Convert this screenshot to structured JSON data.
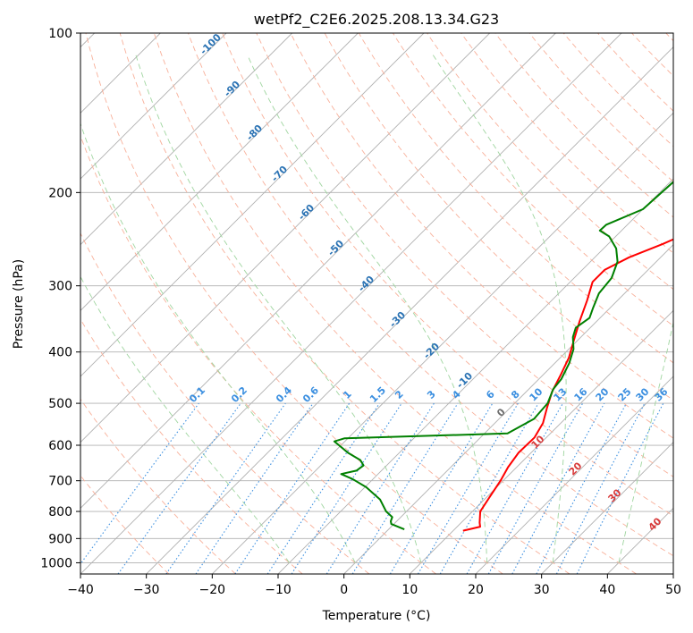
{
  "chart_data": {
    "type": "line",
    "subtype": "skew-T log-P",
    "title": "wetPf2_C2E6.2025.208.13.34.G23",
    "xlabel": "Temperature (°C)",
    "ylabel": "Pressure (hPa)",
    "xlim": [
      -40,
      50
    ],
    "ylim": [
      1050,
      100
    ],
    "y_scale": "log",
    "grid": true,
    "x_ticks": [
      "−40",
      "−30",
      "−20",
      "−10",
      "0",
      "10",
      "20",
      "30",
      "40",
      "50"
    ],
    "y_ticks": [
      "100",
      "200",
      "300",
      "400",
      "500",
      "600",
      "700",
      "800",
      "900",
      "1000"
    ],
    "series": [
      {
        "role": "temperature",
        "color": "#ff0000",
        "points": [
          [
            870,
            11.5
          ],
          [
            855,
            13.5
          ],
          [
            840,
            12.8
          ],
          [
            800,
            11.2
          ],
          [
            750,
            10.4
          ],
          [
            700,
            9.6
          ],
          [
            660,
            8.7
          ],
          [
            620,
            8.1
          ],
          [
            580,
            8.2
          ],
          [
            545,
            7.3
          ],
          [
            510,
            5.6
          ],
          [
            475,
            3.9
          ],
          [
            440,
            2.6
          ],
          [
            410,
            1.3
          ],
          [
            380,
            -0.6
          ],
          [
            350,
            -2.6
          ],
          [
            320,
            -4.6
          ],
          [
            295,
            -6.6
          ],
          [
            280,
            -6.6
          ],
          [
            265,
            -4.8
          ],
          [
            250,
            -1.7
          ],
          [
            235,
            1.1
          ],
          [
            220,
            3.3
          ],
          [
            205,
            4.6
          ],
          [
            190,
            5.2
          ],
          [
            175,
            5.1
          ],
          [
            160,
            5.3
          ],
          [
            145,
            6.8
          ],
          [
            130,
            7.7
          ],
          [
            118,
            9.0
          ],
          [
            108,
            10.4
          ],
          [
            100,
            11.8
          ]
        ]
      },
      {
        "role": "dewpoint",
        "color": "#008000",
        "points": [
          [
            865,
            2.4
          ],
          [
            855,
            1.0
          ],
          [
            845,
            -0.4
          ],
          [
            835,
            -0.9
          ],
          [
            820,
            -1.3
          ],
          [
            800,
            -3.1
          ],
          [
            760,
            -5.8
          ],
          [
            720,
            -9.8
          ],
          [
            695,
            -13.1
          ],
          [
            680,
            -15.6
          ],
          [
            670,
            -13.8
          ],
          [
            655,
            -13.5
          ],
          [
            640,
            -14.8
          ],
          [
            620,
            -17.8
          ],
          [
            600,
            -20.3
          ],
          [
            590,
            -21.6
          ],
          [
            582,
            -20.5
          ],
          [
            570,
            3.5
          ],
          [
            535,
            5.3
          ],
          [
            500,
            5.0
          ],
          [
            470,
            3.7
          ],
          [
            450,
            3.4
          ],
          [
            420,
            2.2
          ],
          [
            395,
            0.7
          ],
          [
            375,
            -1.2
          ],
          [
            360,
            -2.2
          ],
          [
            345,
            -1.6
          ],
          [
            330,
            -2.6
          ],
          [
            310,
            -3.9
          ],
          [
            290,
            -4.3
          ],
          [
            270,
            -5.9
          ],
          [
            255,
            -8.1
          ],
          [
            242,
            -11.0
          ],
          [
            236,
            -13.3
          ],
          [
            230,
            -13.2
          ],
          [
            215,
            -10.0
          ],
          [
            200,
            -9.7
          ],
          [
            185,
            -9.4
          ],
          [
            170,
            -7.6
          ],
          [
            155,
            -3.8
          ],
          [
            140,
            -1.3
          ],
          [
            128,
            1.8
          ],
          [
            118,
            3.8
          ],
          [
            110,
            4.2
          ],
          [
            100,
            4.2
          ]
        ]
      }
    ],
    "dry_adiabat_labels": [
      "-100",
      "-90",
      "-80",
      "-70",
      "-60",
      "-50",
      "-40",
      "-30",
      "-20",
      "-10"
    ],
    "mixing_ratio_labels": [
      "0.1",
      "0.2",
      "0.4",
      "0.6",
      "1",
      "1.5",
      "2",
      "3",
      "4",
      "6",
      "8",
      "10",
      "13",
      "16",
      "20",
      "25",
      "30",
      "36"
    ],
    "moist_adiabat_labels": [
      "0",
      "10",
      "20",
      "30",
      "40"
    ]
  }
}
